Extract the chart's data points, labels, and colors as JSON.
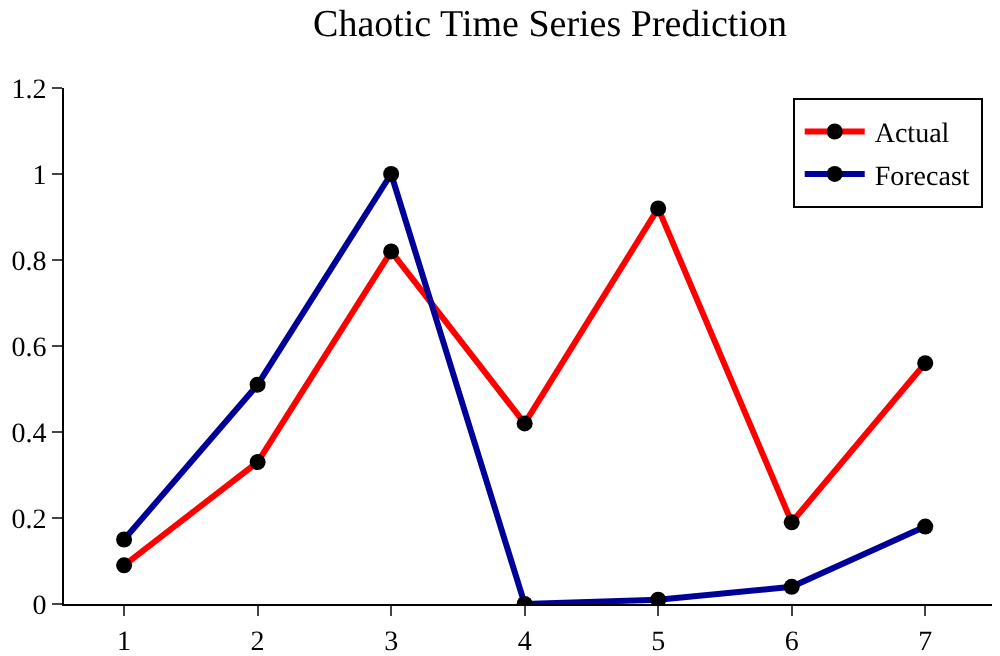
{
  "chart_data": {
    "type": "line",
    "title": "Chaotic Time Series Prediction",
    "x": [
      1,
      2,
      3,
      4,
      5,
      6,
      7
    ],
    "series": [
      {
        "name": "Actual",
        "color": "#ff0000",
        "values": [
          0.09,
          0.33,
          0.82,
          0.42,
          0.92,
          0.19,
          0.56
        ]
      },
      {
        "name": "Forecast",
        "color": "#000099",
        "values": [
          0.15,
          0.51,
          1.0,
          0.0,
          0.01,
          0.04,
          0.18
        ]
      }
    ],
    "xlim": [
      0.55,
      7.5
    ],
    "xticks": [
      1,
      2,
      3,
      4,
      5,
      6,
      7
    ],
    "ylim": [
      0,
      1.2
    ],
    "yticks": [
      0,
      0.2,
      0.4,
      0.6,
      0.8,
      1,
      1.2
    ],
    "grid": false,
    "legend": "top right",
    "marker": "circle",
    "line_style": "solid"
  }
}
